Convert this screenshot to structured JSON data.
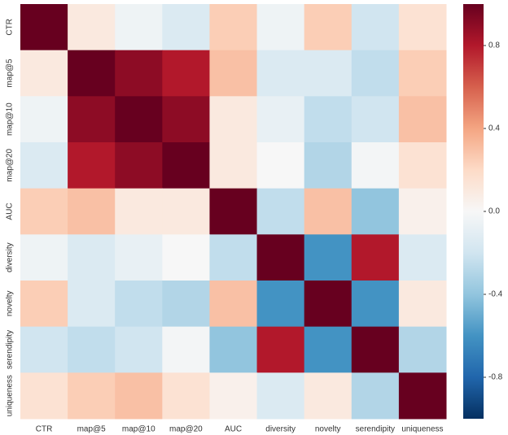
{
  "chart_data": {
    "type": "heatmap",
    "x": [
      "CTR",
      "map@5",
      "map@10",
      "map@20",
      "AUC",
      "diversity",
      "novelty",
      "serendipity",
      "uniqueness"
    ],
    "y": [
      "CTR",
      "map@5",
      "map@10",
      "map@20",
      "AUC",
      "diversity",
      "novelty",
      "serendipity",
      "uniqueness"
    ],
    "values": [
      [
        1,
        0.1,
        -0.05,
        -0.15,
        0.25,
        -0.05,
        0.25,
        -0.2,
        0.15
      ],
      [
        0.1,
        1,
        0.9,
        0.8,
        0.3,
        -0.15,
        -0.15,
        -0.25,
        0.25
      ],
      [
        -0.05,
        0.9,
        1,
        0.9,
        0.1,
        -0.08,
        -0.25,
        -0.2,
        0.3
      ],
      [
        -0.15,
        0.8,
        0.9,
        1,
        0.1,
        0.0,
        -0.3,
        -0.02,
        0.15
      ],
      [
        0.25,
        0.3,
        0.1,
        0.1,
        1,
        -0.25,
        0.3,
        -0.4,
        0.05
      ],
      [
        -0.05,
        -0.15,
        -0.08,
        0.0,
        -0.25,
        1,
        -0.6,
        0.8,
        -0.15
      ],
      [
        0.25,
        -0.15,
        -0.25,
        -0.3,
        0.3,
        -0.6,
        1,
        -0.6,
        0.1
      ],
      [
        -0.2,
        -0.25,
        -0.2,
        -0.02,
        -0.4,
        0.8,
        -0.6,
        1,
        -0.3
      ],
      [
        0.15,
        0.25,
        0.3,
        0.15,
        0.05,
        -0.15,
        0.1,
        -0.3,
        1
      ]
    ],
    "colormap": "RdBu_r",
    "zlim": [
      -1,
      1
    ],
    "zticks": [
      -0.8,
      -0.4,
      {
        "value": 0,
        "label": "0.0"
      },
      0.4,
      0.8
    ]
  }
}
